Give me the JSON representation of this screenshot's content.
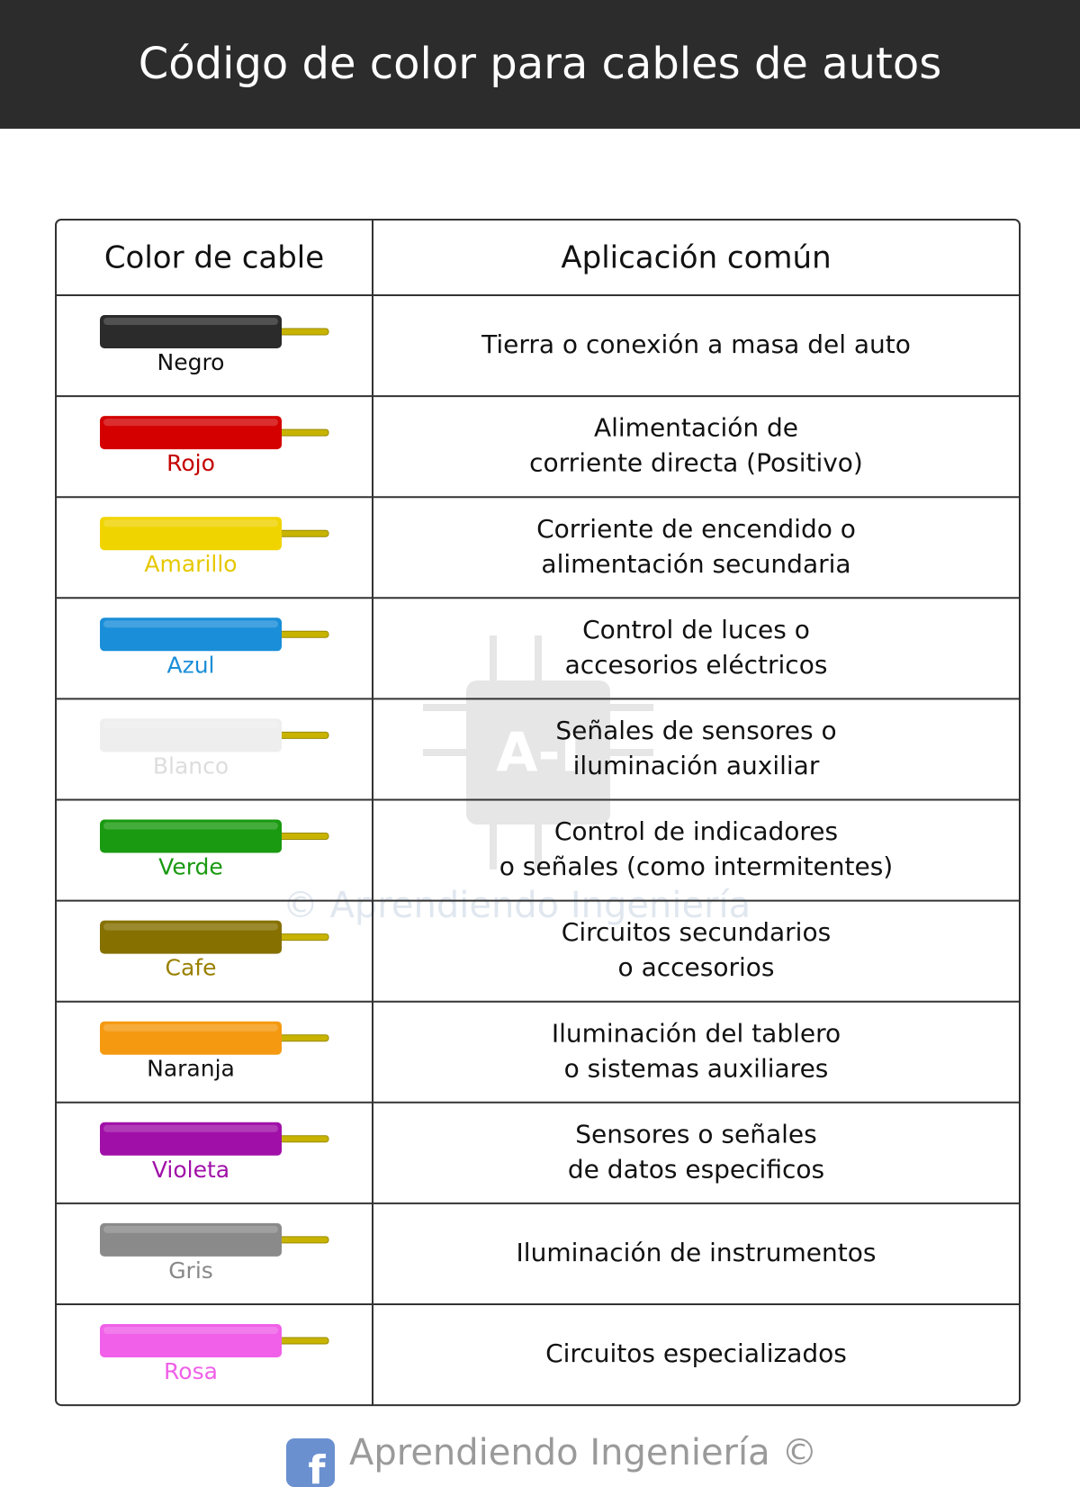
{
  "header": {
    "title": "Código de color para cables de autos"
  },
  "table": {
    "headers": [
      "Color de cable",
      "Aplicación común"
    ],
    "rows": [
      {
        "color_name": "Negro",
        "cable_color": "#2b2b2b",
        "label_color": "#111111",
        "application": [
          "Tierra o conexión a masa del auto"
        ]
      },
      {
        "color_name": "Rojo",
        "cable_color": "#d40000",
        "label_color": "#c40000",
        "application": [
          "Alimentación de",
          "corriente directa (Positivo)"
        ]
      },
      {
        "color_name": "Amarillo",
        "cable_color": "#f0d400",
        "label_color": "#e6c800",
        "application": [
          "Corriente de encendido o",
          "alimentación secundaria"
        ]
      },
      {
        "color_name": "Azul",
        "cable_color": "#1a8ed8",
        "label_color": "#1a8ed8",
        "application": [
          "Control de luces o",
          "accesorios eléctricos"
        ]
      },
      {
        "color_name": "Blanco",
        "cable_color": "#eeeeee",
        "label_color": "#dddddd",
        "application": [
          "Señales de sensores o",
          "iluminación auxiliar"
        ]
      },
      {
        "color_name": "Verde",
        "cable_color": "#1a9a10",
        "label_color": "#1a9a10",
        "application": [
          "Control de indicadores",
          "o señales (como intermitentes)"
        ]
      },
      {
        "color_name": "Cafe",
        "cable_color": "#857000",
        "label_color": "#9a8000",
        "application": [
          "Circuitos secundarios",
          "o accesorios"
        ]
      },
      {
        "color_name": "Naranja",
        "cable_color": "#f59a10",
        "label_color": "#111111",
        "application": [
          "Iluminación del tablero",
          "o sistemas auxiliares"
        ]
      },
      {
        "color_name": "Violeta",
        "cable_color": "#a010a8",
        "label_color": "#a010a8",
        "application": [
          "Sensores o señales",
          "de datos especificos"
        ]
      },
      {
        "color_name": "Gris",
        "cable_color": "#8a8a8a",
        "label_color": "#888888",
        "application": [
          "Iluminación de instrumentos"
        ]
      },
      {
        "color_name": "Rosa",
        "cable_color": "#f060e8",
        "label_color": "#f060e8",
        "application": [
          "Circuitos especializados"
        ]
      }
    ]
  },
  "watermark": {
    "logo": "A-I",
    "text": "© Aprendiendo Ingeniería"
  },
  "footer": {
    "text": "Aprendiendo Ingeniería ©"
  }
}
